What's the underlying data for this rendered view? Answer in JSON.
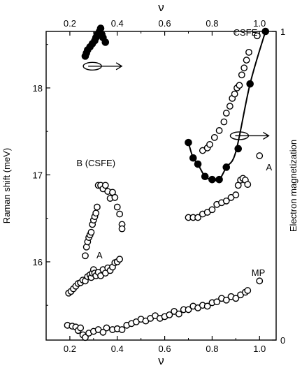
{
  "chart_data": {
    "type": "scatter",
    "xlabel_bottom": "ν",
    "xlabel_top": "ν",
    "ylabel_left": "Raman shift (meV)",
    "ylabel_right": "Electron magnetization",
    "xlim": [
      0.1,
      1.07
    ],
    "ylim_left": [
      15.1,
      18.65
    ],
    "ylim_right": [
      0,
      1
    ],
    "x_ticks": [
      0.2,
      0.4,
      0.6,
      0.8,
      1.0
    ],
    "x_tick_labels": [
      "0.2",
      "0.4",
      "0.6",
      "0.8",
      "1.0"
    ],
    "y_left_ticks": [
      16,
      17,
      18
    ],
    "y_left_tick_labels": [
      "16",
      "17",
      "18"
    ],
    "y_right_ticks": [
      0,
      1
    ],
    "y_right_tick_labels": [
      "0",
      "1"
    ],
    "annotations": [
      {
        "text": "CSFE",
        "x": 0.94,
        "y": 18.6
      },
      {
        "text": "B (CSFE)",
        "x": 0.31,
        "y": 17.1
      },
      {
        "text": "A",
        "x": 0.325,
        "y": 16.04
      },
      {
        "text": "A",
        "x": 1.04,
        "y": 17.05
      },
      {
        "text": "MP",
        "x": 0.995,
        "y": 15.84
      }
    ],
    "series": [
      {
        "marker": "open",
        "axis": "left",
        "x": [
          0.195,
          0.205,
          0.215,
          0.225,
          0.235,
          0.245,
          0.255,
          0.265,
          0.275,
          0.285,
          0.29,
          0.295,
          0.3,
          0.305,
          0.31,
          0.32,
          0.33,
          0.34,
          0.35,
          0.36,
          0.37,
          0.38,
          0.39,
          0.4,
          0.41
        ],
        "y": [
          15.64,
          15.66,
          15.69,
          15.72,
          15.75,
          15.76,
          15.79,
          15.78,
          15.83,
          15.85,
          15.82,
          15.87,
          15.91,
          15.87,
          15.84,
          15.88,
          15.84,
          15.91,
          15.87,
          15.93,
          15.9,
          15.94,
          15.99,
          16.0,
          16.03
        ]
      },
      {
        "marker": "open",
        "axis": "left",
        "x": [
          0.265,
          0.27,
          0.275,
          0.28,
          0.285,
          0.29,
          0.295,
          0.3,
          0.305,
          0.31,
          0.315,
          0.32,
          0.33,
          0.34,
          0.35,
          0.36,
          0.37,
          0.38,
          0.39,
          0.4,
          0.41,
          0.42,
          0.42
        ],
        "y": [
          16.07,
          16.17,
          16.23,
          16.28,
          16.31,
          16.34,
          16.43,
          16.48,
          16.52,
          16.56,
          16.63,
          16.88,
          16.88,
          16.84,
          16.88,
          16.81,
          16.73,
          16.8,
          16.74,
          16.63,
          16.55,
          16.43,
          16.38
        ]
      },
      {
        "marker": "open",
        "axis": "left",
        "x": [
          0.7,
          0.72,
          0.74,
          0.76,
          0.78,
          0.8,
          0.82,
          0.84,
          0.86,
          0.88,
          0.9,
          0.91,
          0.92,
          0.93,
          0.94,
          0.95
        ],
        "y": [
          16.51,
          16.51,
          16.51,
          16.55,
          16.57,
          16.6,
          16.66,
          16.68,
          16.7,
          16.74,
          16.77,
          16.88,
          16.94,
          16.96,
          16.94,
          16.89
        ]
      },
      {
        "marker": "open",
        "axis": "left",
        "x": [
          0.76,
          0.78,
          0.79,
          0.81,
          0.83,
          0.85,
          0.86,
          0.875,
          0.885,
          0.895,
          0.905,
          0.915,
          0.925,
          0.935,
          0.945,
          0.955,
          0.99,
          1.0
        ],
        "y": [
          17.28,
          17.31,
          17.35,
          17.43,
          17.51,
          17.61,
          17.71,
          17.79,
          17.88,
          17.93,
          18.0,
          18.03,
          18.15,
          18.23,
          18.32,
          18.41,
          18.6,
          17.22
        ]
      },
      {
        "marker": "open",
        "axis": "left",
        "x": [
          0.19,
          0.21,
          0.225,
          0.235,
          0.245,
          0.255,
          0.265,
          0.28,
          0.3,
          0.32,
          0.34,
          0.355,
          0.38,
          0.4,
          0.42,
          0.44,
          0.46,
          0.48,
          0.5,
          0.52,
          0.54,
          0.56,
          0.58,
          0.6,
          0.62,
          0.64,
          0.66,
          0.68,
          0.7,
          0.72,
          0.74,
          0.76,
          0.78,
          0.8,
          0.82,
          0.84,
          0.86,
          0.88,
          0.9,
          0.92,
          0.94,
          0.95,
          1.0
        ],
        "y": [
          15.27,
          15.26,
          15.25,
          15.21,
          15.24,
          15.16,
          15.13,
          15.18,
          15.2,
          15.22,
          15.19,
          15.24,
          15.22,
          15.23,
          15.22,
          15.27,
          15.29,
          15.31,
          15.34,
          15.32,
          15.35,
          15.38,
          15.35,
          15.37,
          15.39,
          15.43,
          15.4,
          15.45,
          15.45,
          15.49,
          15.47,
          15.5,
          15.49,
          15.53,
          15.54,
          15.58,
          15.56,
          15.6,
          15.58,
          15.62,
          15.65,
          15.67,
          15.78
        ]
      },
      {
        "marker": "filled",
        "axis": "right",
        "x": [
          0.265,
          0.27,
          0.275,
          0.285,
          0.295,
          0.305,
          0.31,
          0.315,
          0.325,
          0.33,
          0.335,
          0.34,
          0.35
        ],
        "y": [
          0.92,
          0.93,
          0.94,
          0.95,
          0.96,
          0.97,
          0.98,
          0.99,
          1.0,
          1.01,
          0.99,
          0.98,
          0.965
        ]
      },
      {
        "marker": "filled",
        "axis": "right",
        "x": [
          0.7,
          0.72,
          0.74,
          0.77,
          0.8,
          0.83,
          0.86,
          0.91,
          0.96,
          1.025
        ],
        "y": [
          0.64,
          0.59,
          0.57,
          0.53,
          0.52,
          0.52,
          0.56,
          0.62,
          0.83,
          1.0
        ]
      }
    ],
    "curve": {
      "axis": "right",
      "x": [
        0.7,
        0.72,
        0.74,
        0.77,
        0.8,
        0.83,
        0.86,
        0.9,
        0.96,
        1.025
      ],
      "y": [
        0.64,
        0.59,
        0.57,
        0.53,
        0.52,
        0.52,
        0.56,
        0.61,
        0.83,
        1.0
      ]
    },
    "arrows": [
      {
        "x": 0.295,
        "y": 18.25,
        "direction": "right"
      },
      {
        "x": 0.915,
        "y": 17.45,
        "direction": "right"
      }
    ]
  }
}
